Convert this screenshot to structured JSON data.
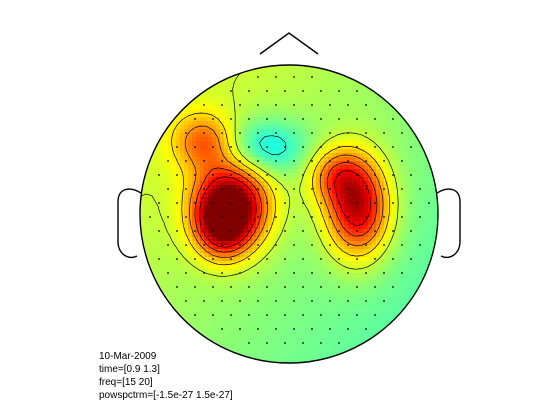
{
  "chart_data": {
    "type": "heatmap",
    "subtype": "eeg-topoplot",
    "colormap": "jet",
    "color_range": [
      -1.5e-27,
      1.5e-27
    ],
    "head_outline": true,
    "contours": true,
    "electrode_markers": true,
    "peaks": [
      {
        "region": "left-central",
        "relative_level": 0.95
      },
      {
        "region": "right-central",
        "relative_level": 0.85
      },
      {
        "region": "left-frontal",
        "relative_level": 0.45
      },
      {
        "region": "midline-frontal",
        "relative_level": -0.35
      }
    ]
  },
  "annotations": {
    "date": "10-Mar-2009",
    "time": "time=[0.9 1.3]",
    "freq": "freq=[15 20]",
    "powspctrm": "powspctrm=[-1.5e-27 1.5e-27]"
  }
}
